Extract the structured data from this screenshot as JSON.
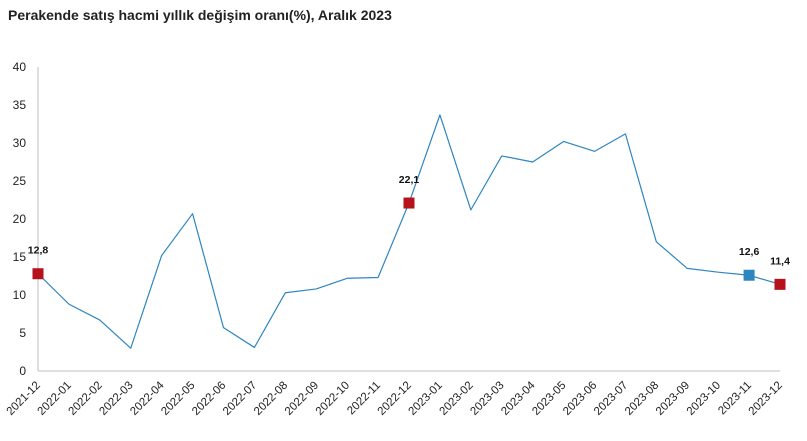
{
  "chart_data": {
    "type": "line",
    "title": "Perakende satış hacmi yıllık değişim oranı(%), Aralık 2023",
    "xlabel": "",
    "ylabel": "",
    "ylim": [
      0,
      40
    ],
    "yticks": [
      0,
      5,
      10,
      15,
      20,
      25,
      30,
      35,
      40
    ],
    "grid": false,
    "legend": "none",
    "x": [
      "2021-12",
      "2022-01",
      "2022-02",
      "2022-03",
      "2022-04",
      "2022-05",
      "2022-06",
      "2022-07",
      "2022-08",
      "2022-09",
      "2022-10",
      "2022-11",
      "2022-12",
      "2023-01",
      "2023-02",
      "2023-03",
      "2023-04",
      "2023-05",
      "2023-06",
      "2023-07",
      "2023-08",
      "2023-09",
      "2023-10",
      "2023-11",
      "2023-12"
    ],
    "series": [
      {
        "values": [
          12.8,
          8.8,
          6.7,
          3.0,
          15.2,
          20.7,
          5.7,
          3.1,
          10.3,
          10.8,
          12.2,
          12.3,
          22.1,
          33.7,
          21.2,
          28.3,
          27.5,
          30.2,
          28.9,
          31.2,
          17.0,
          13.5,
          13.0,
          12.6,
          11.4
        ],
        "color": "#2e86c1"
      }
    ],
    "markers": [
      {
        "index": 0,
        "label": "12,8",
        "color": "#b5121b"
      },
      {
        "index": 12,
        "label": "22,1",
        "color": "#b5121b"
      },
      {
        "index": 23,
        "label": "12,6",
        "color": "#2e86c1"
      },
      {
        "index": 24,
        "label": "11,4",
        "color": "#b5121b"
      }
    ],
    "axis_color": "#bfbfbf"
  }
}
